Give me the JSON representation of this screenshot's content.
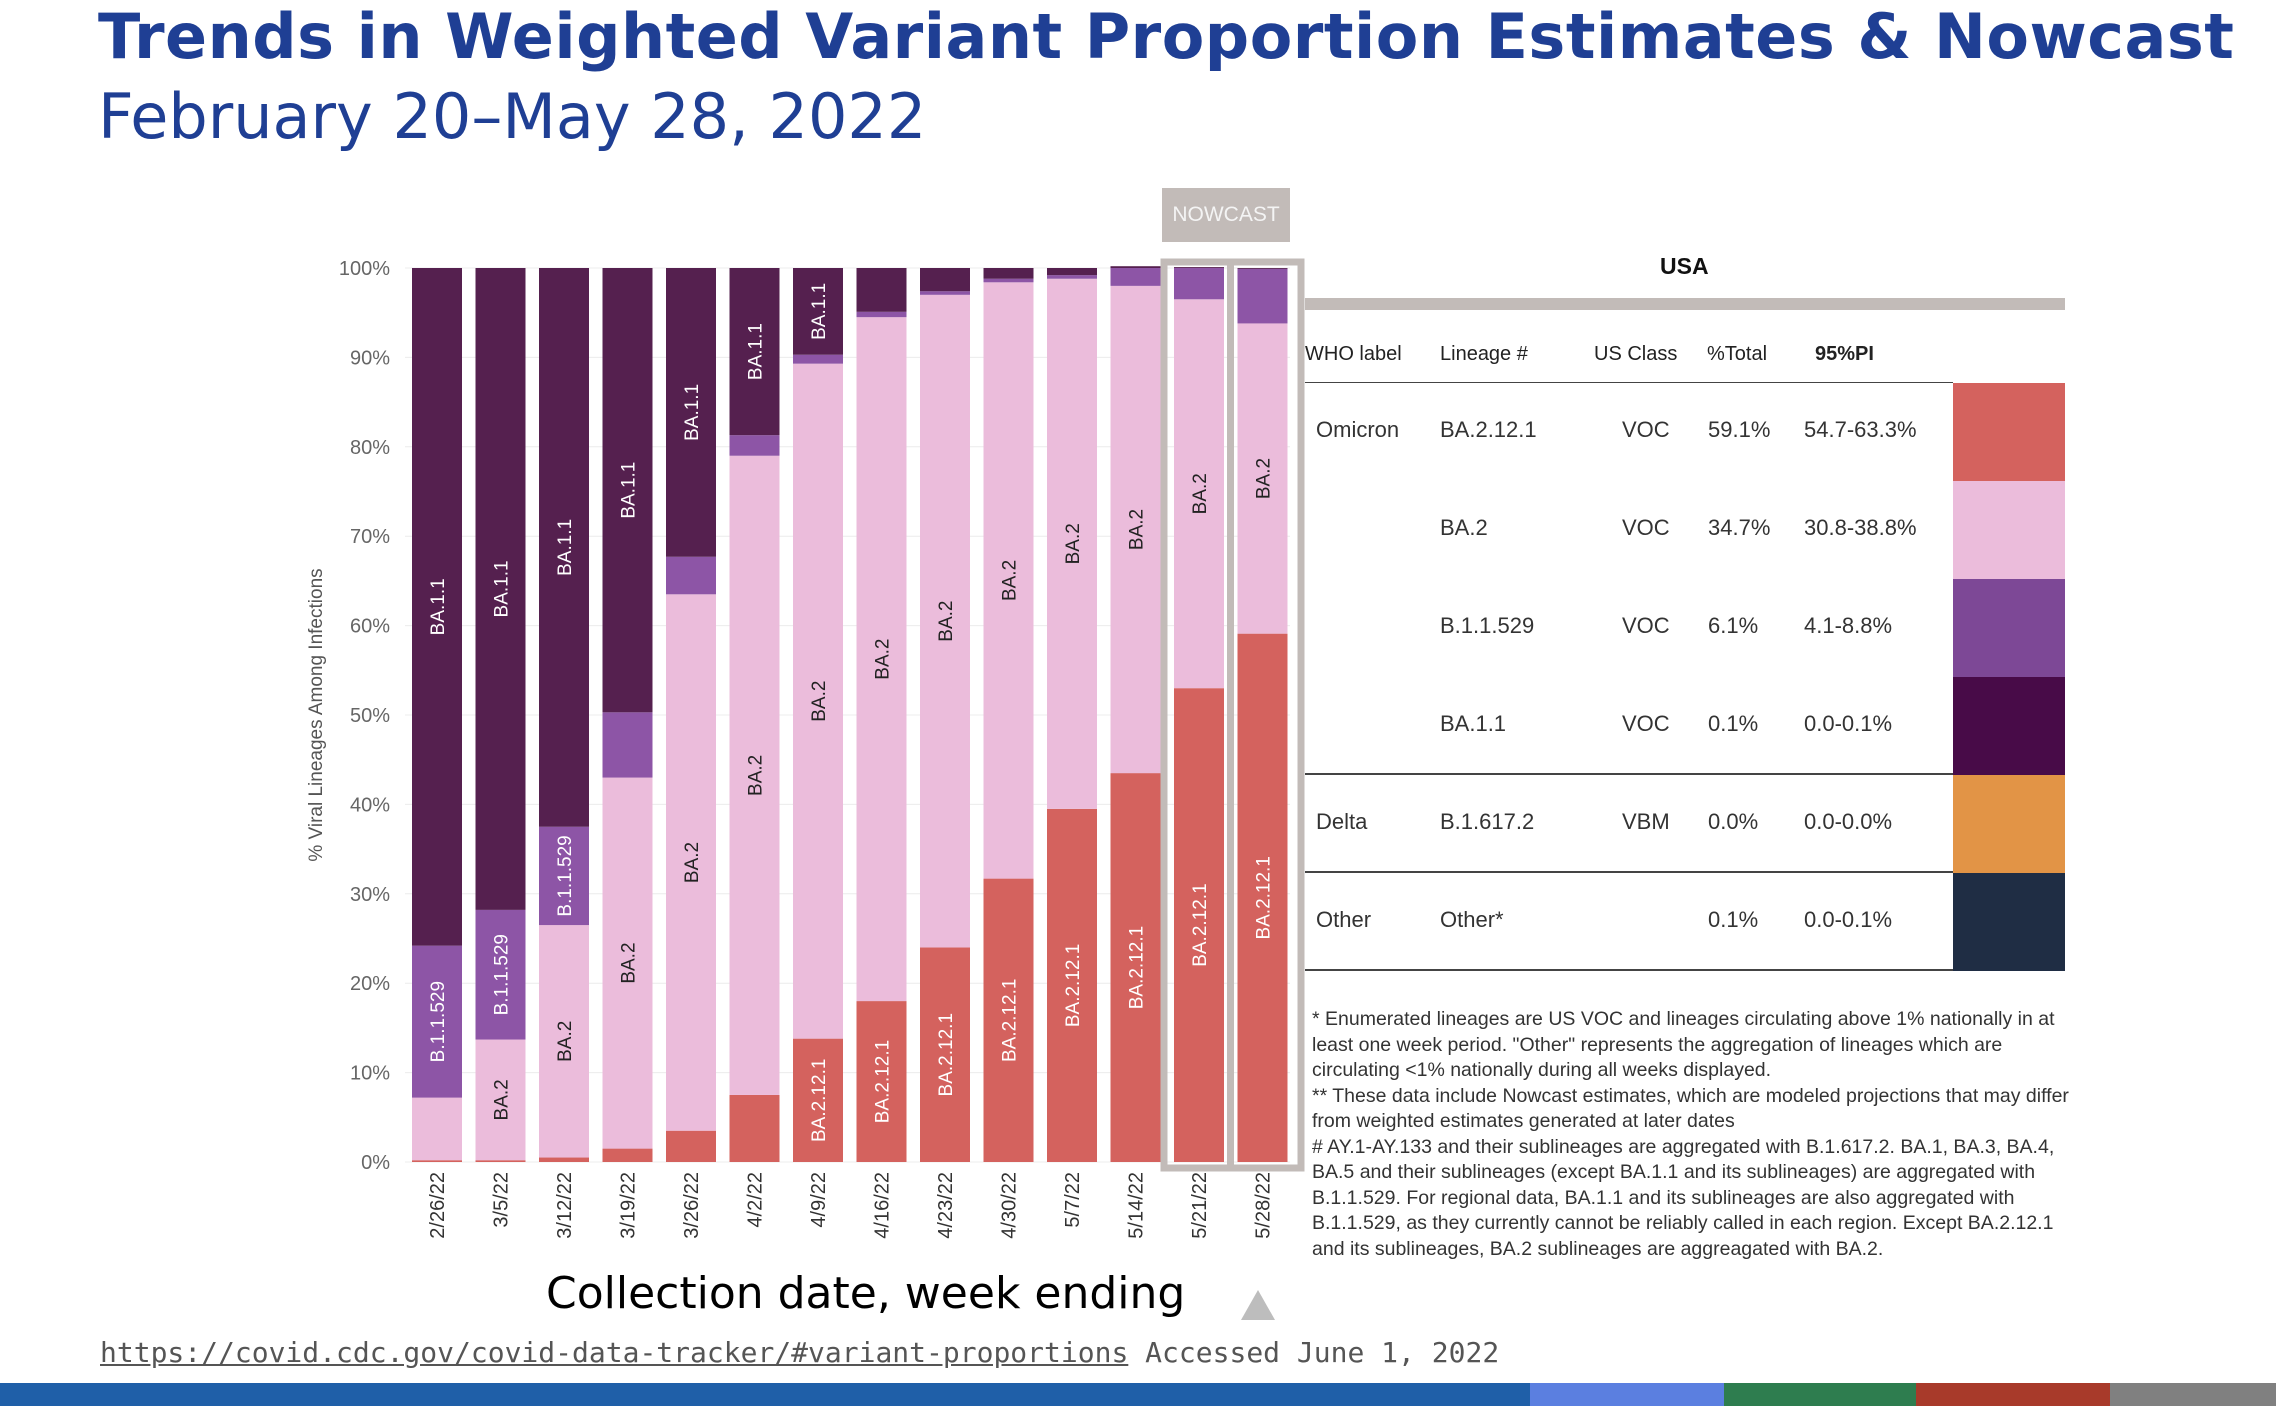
{
  "page": {
    "title": "Trends in Weighted Variant Proportion Estimates & Nowcast",
    "subtitle": "February 20–May 28, 2022",
    "nowcast_tab": "NOWCAST",
    "x_axis_title": "Collection date, week ending",
    "source_url": "https://covid.cdc.gov/covid-data-tracker/#variant-proportions",
    "source_accessed": "Accessed June 1, 2022",
    "bottom_bar_colors": [
      "#1f5fa8",
      "#5b7fe0",
      "#2e7d4f",
      "#a83a2a",
      "#808080"
    ]
  },
  "chart_data": {
    "type": "bar",
    "stacked": true,
    "ylabel": "% Viral Lineages Among Infections",
    "xlabel": "Collection date, week ending",
    "ylim": [
      0,
      100
    ],
    "yticks": [
      "0%",
      "10%",
      "20%",
      "30%",
      "40%",
      "50%",
      "60%",
      "70%",
      "80%",
      "90%",
      "100%"
    ],
    "categories": [
      "2/26/22",
      "3/5/22",
      "3/12/22",
      "3/19/22",
      "3/26/22",
      "4/2/22",
      "4/9/22",
      "4/16/22",
      "4/23/22",
      "4/30/22",
      "5/7/22",
      "5/14/22",
      "5/21/22",
      "5/28/22"
    ],
    "nowcast_categories": [
      "5/21/22",
      "5/28/22"
    ],
    "series": [
      {
        "name": "BA.2.12.1",
        "color": "#d4625e",
        "values": [
          0.2,
          0.2,
          0.5,
          1.5,
          3.5,
          7.5,
          13.8,
          18,
          24,
          31.7,
          39.5,
          43.5,
          53,
          59.1
        ]
      },
      {
        "name": "BA.2",
        "color": "#ebbcdb",
        "values": [
          7,
          13.5,
          26,
          41.5,
          60,
          71.5,
          75.5,
          76.5,
          73,
          66.7,
          59.3,
          54.5,
          43.5,
          34.7
        ]
      },
      {
        "name": "B.1.1.529",
        "color": "#8d55a6",
        "values": [
          17,
          14.5,
          11,
          7.3,
          4.2,
          2.3,
          1,
          0.6,
          0.4,
          0.4,
          0.4,
          2,
          3.5,
          6.1
        ]
      },
      {
        "name": "BA.1.1",
        "color": "#55204f",
        "values": [
          75.8,
          71.8,
          62.5,
          49.7,
          32.3,
          18.7,
          9.7,
          4.9,
          2.6,
          1.2,
          0.8,
          0.2,
          0.1,
          0.1
        ]
      }
    ],
    "segment_labels": [
      [
        "",
        "",
        "B.1.1.529",
        "BA.1.1"
      ],
      [
        "",
        "BA.2",
        "B.1.1.529",
        "BA.1.1"
      ],
      [
        "",
        "BA.2",
        "B.1.1.529",
        "BA.1.1"
      ],
      [
        "",
        "BA.2",
        "",
        "BA.1.1"
      ],
      [
        "",
        "BA.2",
        "",
        "BA.1.1"
      ],
      [
        "",
        "BA.2",
        "",
        "BA.1.1"
      ],
      [
        "BA.2.12.1",
        "BA.2",
        "",
        "BA.1.1"
      ],
      [
        "BA.2.12.1",
        "BA.2",
        "",
        ""
      ],
      [
        "BA.2.12.1",
        "BA.2",
        "",
        ""
      ],
      [
        "BA.2.12.1",
        "BA.2",
        "",
        ""
      ],
      [
        "BA.2.12.1",
        "BA.2",
        "",
        ""
      ],
      [
        "BA.2.12.1",
        "BA.2",
        "",
        ""
      ],
      [
        "BA.2.12.1",
        "BA.2",
        "",
        ""
      ],
      [
        "BA.2.12.1",
        "BA.2",
        "",
        ""
      ]
    ],
    "legend": "right"
  },
  "table": {
    "title": "USA",
    "headers": [
      "WHO label",
      "Lineage #",
      "US Class",
      "%Total",
      "95%PI"
    ],
    "rows": [
      {
        "who": "Omicron",
        "lineage": "BA.2.12.1",
        "us_class": "VOC",
        "total": "59.1%",
        "pi": "54.7-63.3%",
        "color": "#d4625e"
      },
      {
        "who": "",
        "lineage": "BA.2",
        "us_class": "VOC",
        "total": "34.7%",
        "pi": "30.8-38.8%",
        "color": "#ebbcdb"
      },
      {
        "who": "",
        "lineage": "B.1.1.529",
        "us_class": "VOC",
        "total": "6.1%",
        "pi": "4.1-8.8%",
        "color": "#7d4896"
      },
      {
        "who": "",
        "lineage": "BA.1.1",
        "us_class": "VOC",
        "total": "0.1%",
        "pi": "0.0-0.1%",
        "color": "#480b48"
      },
      {
        "who": "Delta",
        "lineage": "B.1.617.2",
        "us_class": "VBM",
        "total": "0.0%",
        "pi": "0.0-0.0%",
        "color": "#e29446"
      },
      {
        "who": "Other",
        "lineage": "Other*",
        "us_class": "",
        "total": "0.1%",
        "pi": "0.0-0.1%",
        "color": "#1f2d44"
      }
    ]
  },
  "footnotes": [
    "*      Enumerated lineages are US VOC and lineages circulating above 1% nationally in at least one week period. \"Other\" represents the aggregation of lineages which are circulating <1% nationally during all weeks displayed.",
    "**     These data include Nowcast estimates, which are modeled projections that may differ from weighted estimates generated at later dates",
    "#      AY.1-AY.133 and their sublineages are aggregated with B.1.617.2. BA.1, BA.3, BA.4, BA.5 and their sublineages (except BA.1.1 and its sublineages) are aggregated with B.1.1.529. For regional data, BA.1.1 and its sublineages are also aggregated with B.1.1.529, as they currently cannot be reliably called in each region. Except BA.2.12.1 and its sublineages, BA.2 sublineages are aggreagated with BA.2."
  ]
}
